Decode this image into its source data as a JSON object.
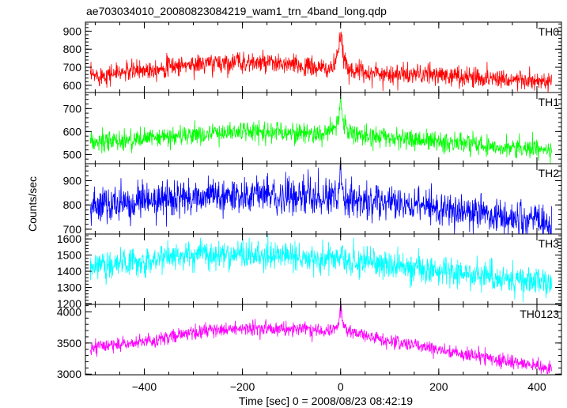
{
  "chart_data": {
    "type": "line",
    "title": "ae703034010_20080823084219_wam1_trn_4band_long.qdp",
    "xlabel": "Time [sec] 0 = 2008/08/23 08:42:19",
    "ylabel": "Counts/sec",
    "xlim": [
      -520,
      450
    ],
    "xticks": [
      -400,
      -200,
      0,
      200,
      400
    ],
    "xtick_labels": [
      "−400",
      "−200",
      "0",
      "200",
      "400"
    ],
    "grid": false,
    "panels": [
      {
        "name": "TH0",
        "color": "#ff0000",
        "ylim": [
          560,
          950
        ],
        "yticks": [
          600,
          700,
          800,
          900
        ],
        "x": [
          -510,
          -480,
          -450,
          -420,
          -390,
          -360,
          -330,
          -300,
          -270,
          -240,
          -210,
          -180,
          -150,
          -120,
          -90,
          -60,
          -30,
          -15,
          -5,
          0,
          5,
          15,
          30,
          60,
          90,
          120,
          150,
          180,
          210,
          240,
          270,
          300,
          330,
          360,
          390,
          420,
          430
        ],
        "values": [
          650,
          660,
          670,
          680,
          690,
          700,
          710,
          715,
          720,
          725,
          730,
          725,
          720,
          715,
          710,
          700,
          690,
          700,
          760,
          900,
          760,
          700,
          680,
          670,
          665,
          660,
          660,
          660,
          655,
          650,
          645,
          640,
          640,
          630,
          620,
          615,
          610
        ],
        "noise": 28
      },
      {
        "name": "TH1",
        "color": "#00ff00",
        "ylim": [
          460,
          770
        ],
        "yticks": [
          500,
          600,
          700
        ],
        "x": [
          -510,
          -480,
          -450,
          -420,
          -390,
          -360,
          -330,
          -300,
          -270,
          -240,
          -210,
          -180,
          -150,
          -120,
          -90,
          -60,
          -30,
          -15,
          -5,
          0,
          5,
          15,
          30,
          60,
          90,
          120,
          150,
          180,
          210,
          240,
          270,
          300,
          330,
          360,
          390,
          420,
          430
        ],
        "values": [
          550,
          555,
          560,
          565,
          570,
          575,
          580,
          585,
          590,
          595,
          600,
          600,
          600,
          598,
          595,
          592,
          590,
          600,
          650,
          740,
          650,
          600,
          590,
          580,
          575,
          570,
          565,
          560,
          555,
          550,
          545,
          540,
          535,
          530,
          525,
          515,
          510
        ],
        "noise": 22
      },
      {
        "name": "TH2",
        "color": "#0000ff",
        "ylim": [
          680,
          970
        ],
        "yticks": [
          700,
          800,
          900
        ],
        "x": [
          -510,
          -480,
          -450,
          -420,
          -390,
          -360,
          -330,
          -300,
          -270,
          -240,
          -210,
          -180,
          -150,
          -120,
          -90,
          -60,
          -30,
          -15,
          -5,
          0,
          5,
          15,
          30,
          60,
          90,
          120,
          150,
          180,
          210,
          240,
          270,
          300,
          330,
          360,
          390,
          420,
          430
        ],
        "values": [
          795,
          800,
          805,
          810,
          815,
          820,
          825,
          830,
          835,
          840,
          840,
          840,
          838,
          835,
          832,
          830,
          828,
          835,
          860,
          920,
          860,
          830,
          820,
          810,
          805,
          800,
          795,
          790,
          785,
          780,
          770,
          760,
          750,
          740,
          735,
          725,
          720
        ],
        "noise": 35
      },
      {
        "name": "TH3",
        "color": "#00ffff",
        "ylim": [
          1195,
          1630
        ],
        "yticks": [
          1200,
          1300,
          1400,
          1500,
          1600
        ],
        "x": [
          -510,
          -480,
          -450,
          -420,
          -390,
          -360,
          -330,
          -300,
          -270,
          -240,
          -210,
          -180,
          -150,
          -120,
          -90,
          -60,
          -30,
          -15,
          -5,
          0,
          5,
          15,
          30,
          60,
          90,
          120,
          150,
          180,
          210,
          240,
          270,
          300,
          330,
          360,
          390,
          420,
          430
        ],
        "values": [
          1420,
          1435,
          1450,
          1465,
          1475,
          1485,
          1495,
          1500,
          1505,
          1505,
          1505,
          1500,
          1498,
          1495,
          1490,
          1485,
          1480,
          1480,
          1485,
          1490,
          1480,
          1470,
          1460,
          1450,
          1440,
          1430,
          1420,
          1410,
          1400,
          1390,
          1380,
          1370,
          1360,
          1350,
          1340,
          1320,
          1310
        ],
        "noise": 45
      },
      {
        "name": "TH0123",
        "color": "#ff00ff",
        "ylim": [
          2990,
          4120
        ],
        "yticks": [
          3000,
          3500,
          4000
        ],
        "ytick_labels": [
          "3000",
          "3500",
          "4000"
        ],
        "x": [
          -510,
          -480,
          -450,
          -420,
          -390,
          -360,
          -330,
          -300,
          -270,
          -240,
          -210,
          -180,
          -150,
          -120,
          -90,
          -60,
          -30,
          -15,
          -5,
          0,
          5,
          15,
          30,
          60,
          90,
          120,
          150,
          180,
          210,
          240,
          270,
          300,
          330,
          360,
          390,
          420,
          430
        ],
        "values": [
          3420,
          3450,
          3480,
          3510,
          3540,
          3580,
          3620,
          3660,
          3690,
          3710,
          3720,
          3730,
          3735,
          3735,
          3730,
          3720,
          3700,
          3720,
          3800,
          4050,
          3800,
          3700,
          3650,
          3600,
          3550,
          3500,
          3460,
          3420,
          3380,
          3340,
          3300,
          3260,
          3220,
          3180,
          3140,
          3100,
          3080
        ],
        "noise": 55
      }
    ]
  }
}
